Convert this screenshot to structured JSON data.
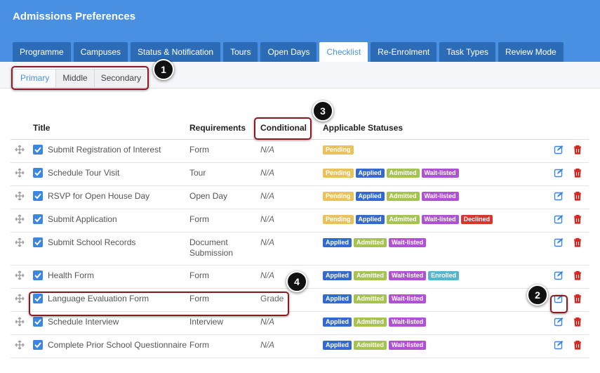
{
  "header": {
    "title": "Admissions Preferences"
  },
  "tabs": [
    "Programme",
    "Campuses",
    "Status & Notification",
    "Tours",
    "Open Days",
    "Checklist",
    "Re-Enrolment",
    "Task Types",
    "Review Mode"
  ],
  "active_tab": 5,
  "sub_tabs": [
    "Primary",
    "Middle",
    "Secondary"
  ],
  "active_sub_tab": 0,
  "table": {
    "columns": [
      "Title",
      "Requirements",
      "Conditional",
      "Applicable Statuses"
    ],
    "rows": [
      {
        "title": "Submit Registration of Interest",
        "requirements": "Form",
        "conditional": "N/A",
        "statuses": [
          "Pending"
        ]
      },
      {
        "title": "Schedule Tour Visit",
        "requirements": "Tour",
        "conditional": "N/A",
        "statuses": [
          "Pending",
          "Applied",
          "Admitted",
          "Wait-listed"
        ]
      },
      {
        "title": "RSVP for Open House Day",
        "requirements": "Open Day",
        "conditional": "N/A",
        "statuses": [
          "Pending",
          "Applied",
          "Admitted",
          "Wait-listed"
        ]
      },
      {
        "title": "Submit Application",
        "requirements": "Form",
        "conditional": "N/A",
        "statuses": [
          "Pending",
          "Applied",
          "Admitted",
          "Wait-listed",
          "Declined"
        ]
      },
      {
        "title": "Submit School Records",
        "requirements": "Document Submission",
        "conditional": "N/A",
        "statuses": [
          "Applied",
          "Admitted",
          "Wait-listed"
        ]
      },
      {
        "title": "Health Form",
        "requirements": "Form",
        "conditional": "N/A",
        "statuses": [
          "Applied",
          "Admitted",
          "Wait-listed",
          "Enrolled"
        ]
      },
      {
        "title": "Language Evaluation Form",
        "requirements": "Form",
        "conditional": "Grade",
        "statuses": [
          "Applied",
          "Admitted",
          "Wait-listed"
        ]
      },
      {
        "title": "Schedule Interview",
        "requirements": "Interview",
        "conditional": "N/A",
        "statuses": [
          "Applied",
          "Admitted",
          "Wait-listed"
        ]
      },
      {
        "title": "Complete Prior School Questionnaire",
        "requirements": "Form",
        "conditional": "N/A",
        "statuses": [
          "Applied",
          "Admitted",
          "Wait-listed"
        ]
      }
    ]
  },
  "status_colors": {
    "Pending": "#e8c35c",
    "Applied": "#3469cf",
    "Admitted": "#a6c34f",
    "Wait-listed": "#b051d3",
    "Enrolled": "#52b6cf",
    "Declined": "#d8352c"
  },
  "callouts": [
    "1",
    "2",
    "3",
    "4"
  ]
}
